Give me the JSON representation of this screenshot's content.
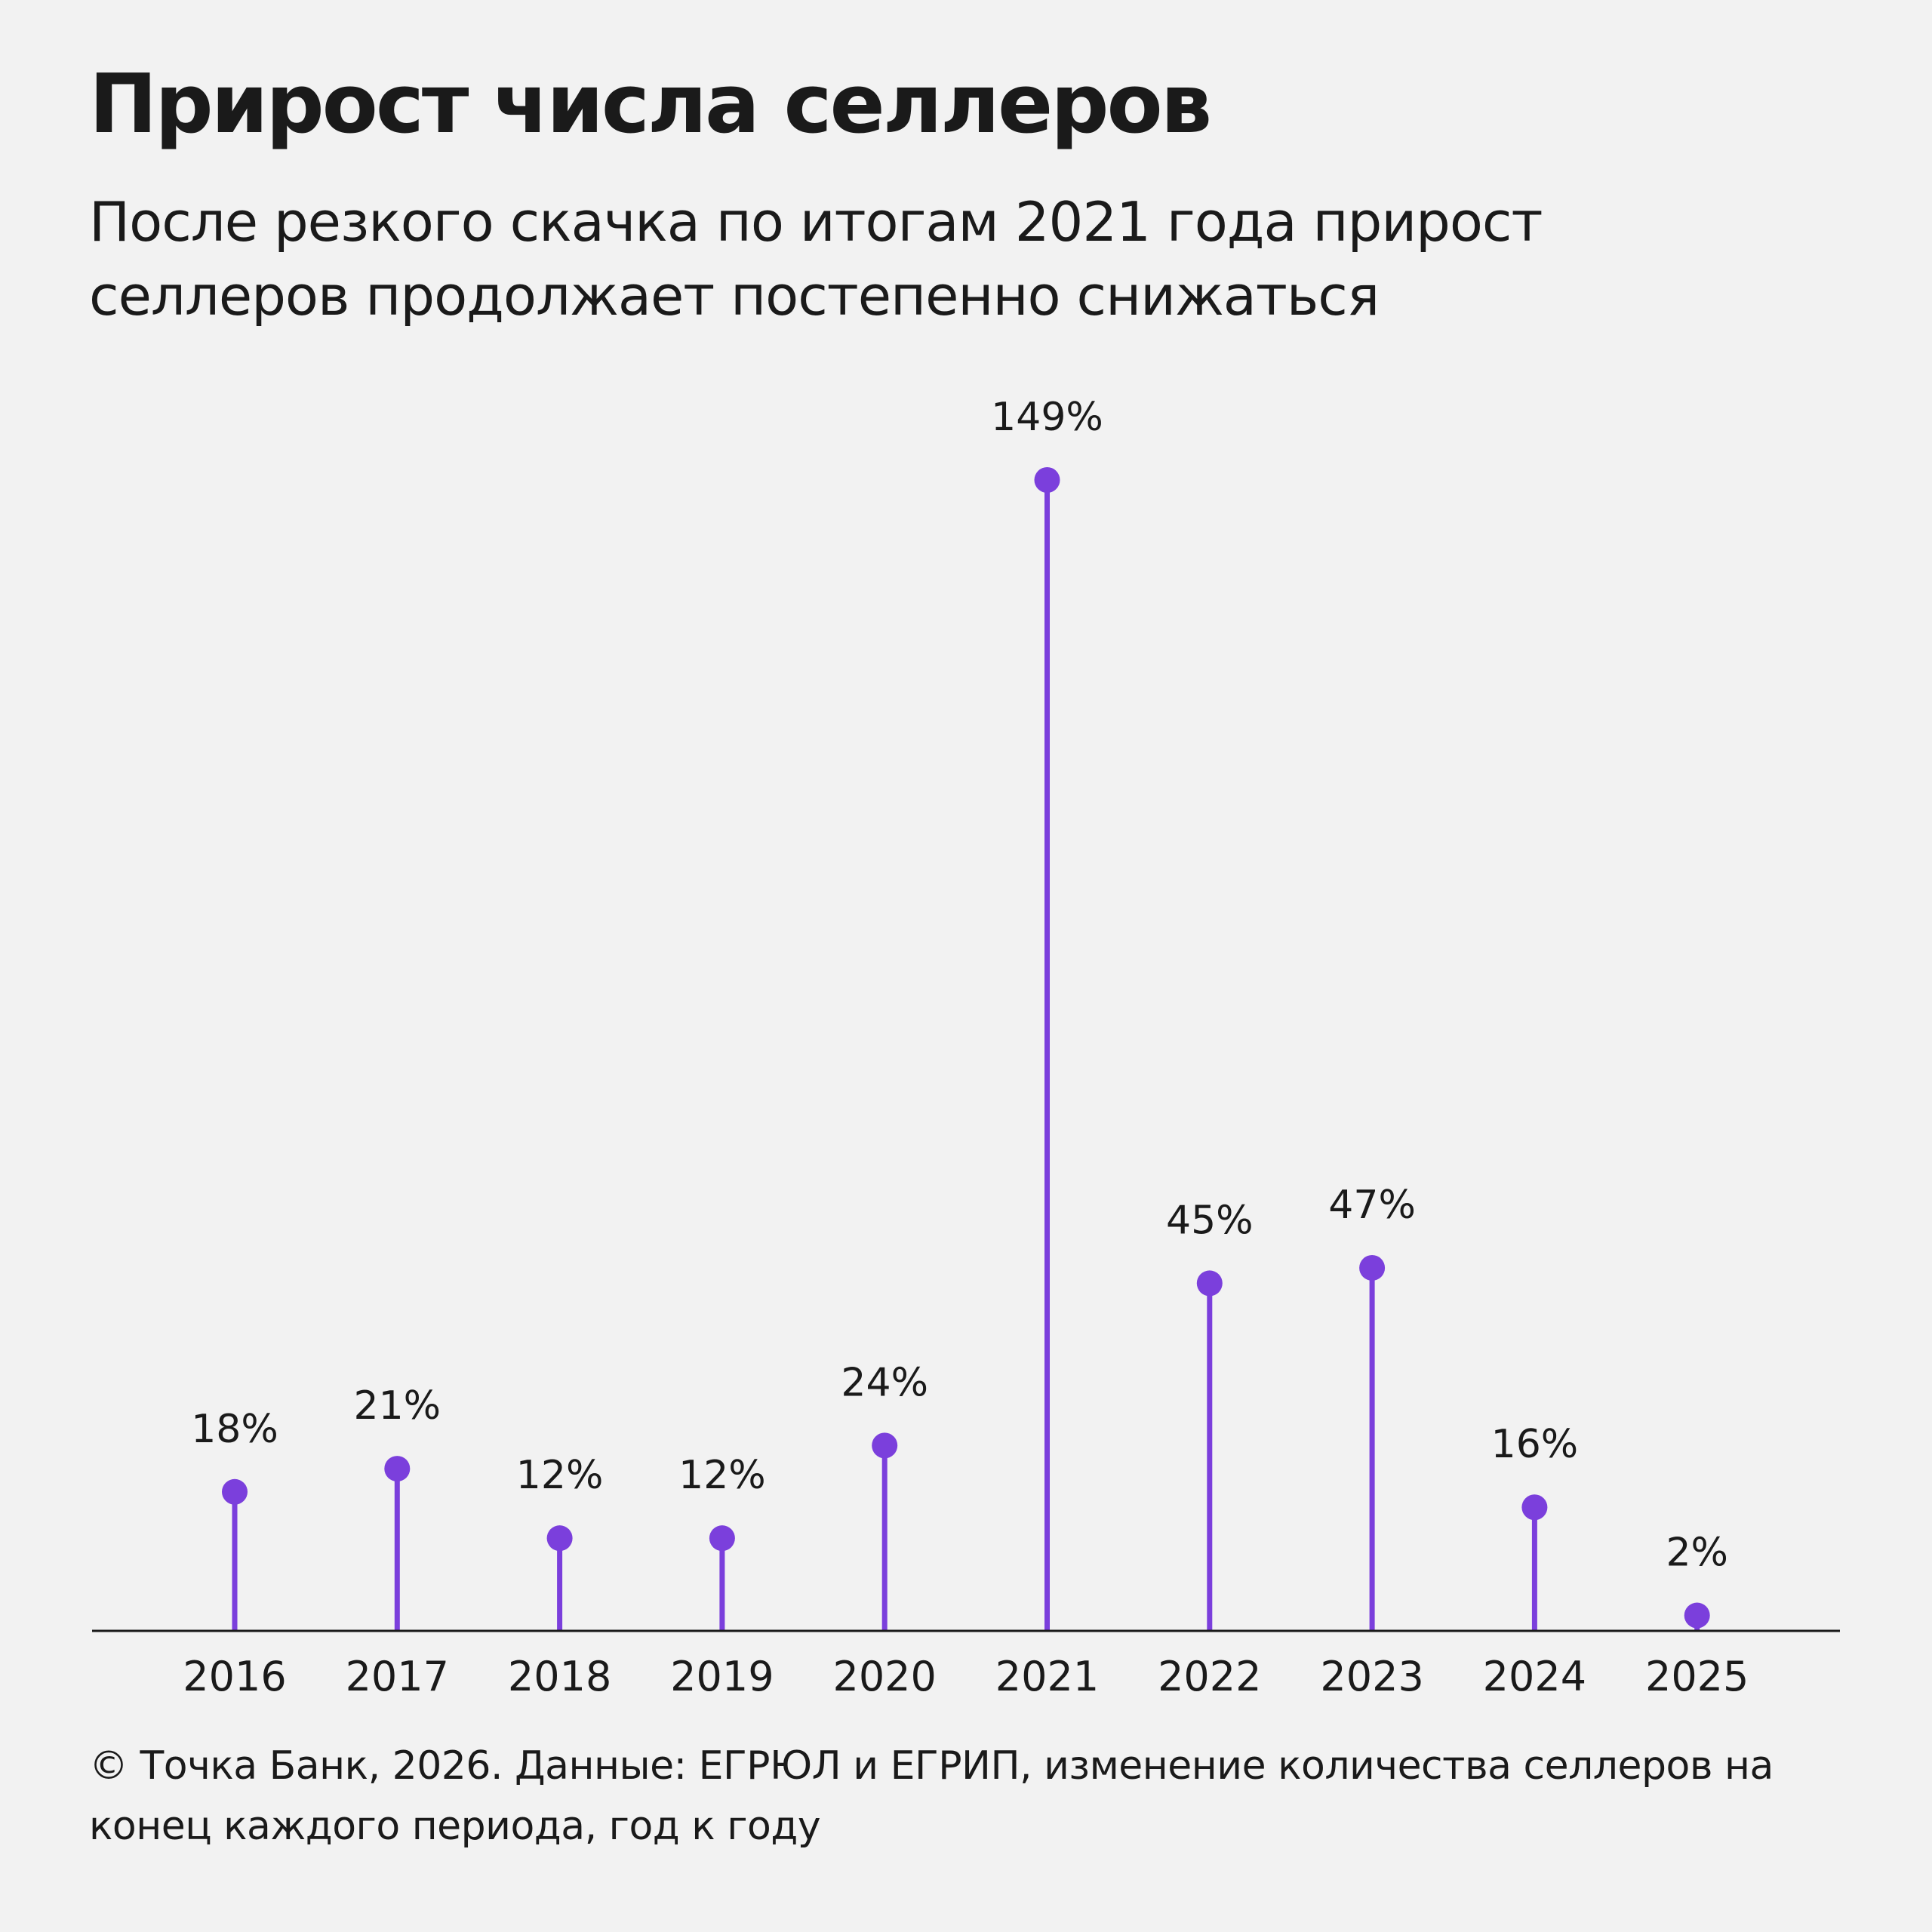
{
  "title": "Прирост числа селлеров",
  "subtitle": "После резкого скачка по итогам 2021 года прирост селлеров продолжает постепенно снижаться",
  "footnote": "© Точка Банк, 2026. Данные: ЕГРЮЛ и ЕГРИП, изменение количества селлеров на конец каждого периода, год к году",
  "colors": {
    "accent": "#7b3fdc",
    "background": "#f2f2f2",
    "text": "#1a1a1a"
  },
  "chart_data": {
    "type": "lollipop",
    "categories": [
      "2016",
      "2017",
      "2018",
      "2019",
      "2020",
      "2021",
      "2022",
      "2023",
      "2024",
      "2025"
    ],
    "values": [
      18,
      21,
      12,
      12,
      24,
      149,
      45,
      47,
      16,
      2
    ],
    "value_labels": [
      "18%",
      "21%",
      "12%",
      "12%",
      "24%",
      "149%",
      "45%",
      "47%",
      "16%",
      "2%"
    ],
    "title": "Прирост числа селлеров",
    "xlabel": "",
    "ylabel": "",
    "ylim": [
      0,
      149
    ],
    "grid": false,
    "legend": "none"
  }
}
